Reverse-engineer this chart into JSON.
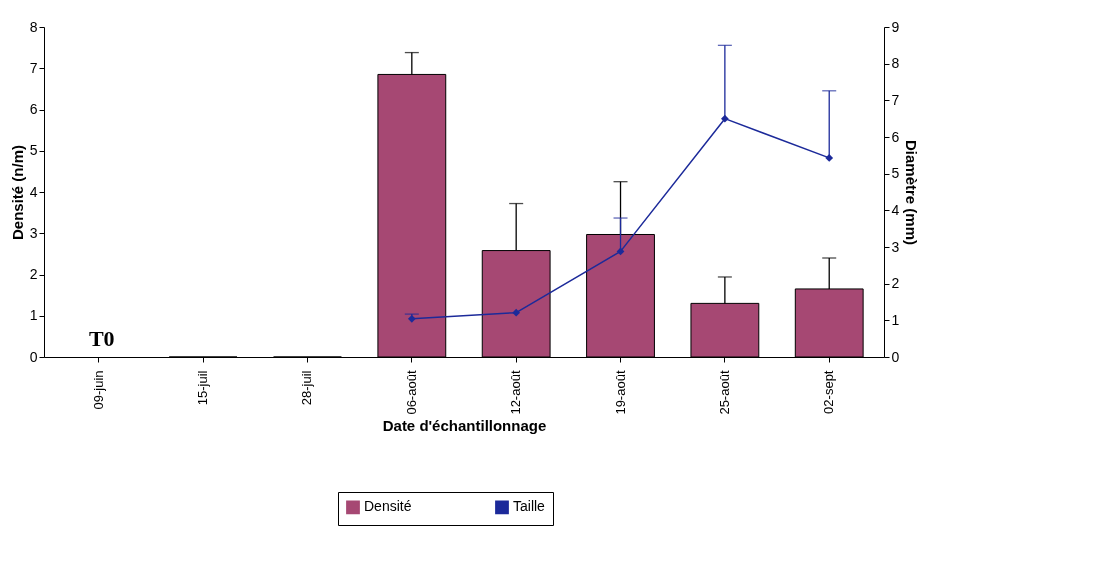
{
  "chart_data": {
    "type": "bar",
    "categories": [
      "09-juin",
      "15-juil",
      "28-juil",
      "06-août",
      "12-août",
      "19-août",
      "25-août",
      "02-sept"
    ],
    "xlabel": "Date d'échantillonnage",
    "ylabel": "Densité (n/m)",
    "y2label": "Diamètre (mm)",
    "series": [
      {
        "name": "Densité",
        "color": "#a64873",
        "values": [
          null,
          0,
          0,
          6.85,
          2.58,
          2.97,
          1.3,
          1.65
        ],
        "errors": [
          null,
          null,
          null,
          [
            6.85,
            7.38
          ],
          [
            2.58,
            3.72
          ],
          [
            2.97,
            4.25
          ],
          [
            1.3,
            1.94
          ],
          [
            1.65,
            2.4
          ]
        ]
      },
      {
        "name": "Taille",
        "type": "line",
        "axis": "y2",
        "color": "#1c2a9a",
        "marker": "diamond",
        "values": [
          null,
          null,
          null,
          1.04,
          1.21,
          2.88,
          6.5,
          5.43
        ],
        "errors": [
          null,
          null,
          null,
          [
            1.04,
            1.17
          ],
          null,
          [
            2.88,
            3.79
          ],
          [
            6.5,
            8.5
          ],
          [
            5.43,
            7.26
          ]
        ]
      }
    ],
    "ylim": [
      0,
      8
    ],
    "yticks": [
      0,
      1,
      2,
      3,
      4,
      5,
      6,
      7,
      8
    ],
    "y2lim": [
      0,
      9
    ],
    "y2ticks": [
      0,
      1,
      2,
      3,
      4,
      5,
      6,
      7,
      8,
      9
    ],
    "annotations": [
      "T0"
    ],
    "legend": "bottom",
    "grid": false
  }
}
